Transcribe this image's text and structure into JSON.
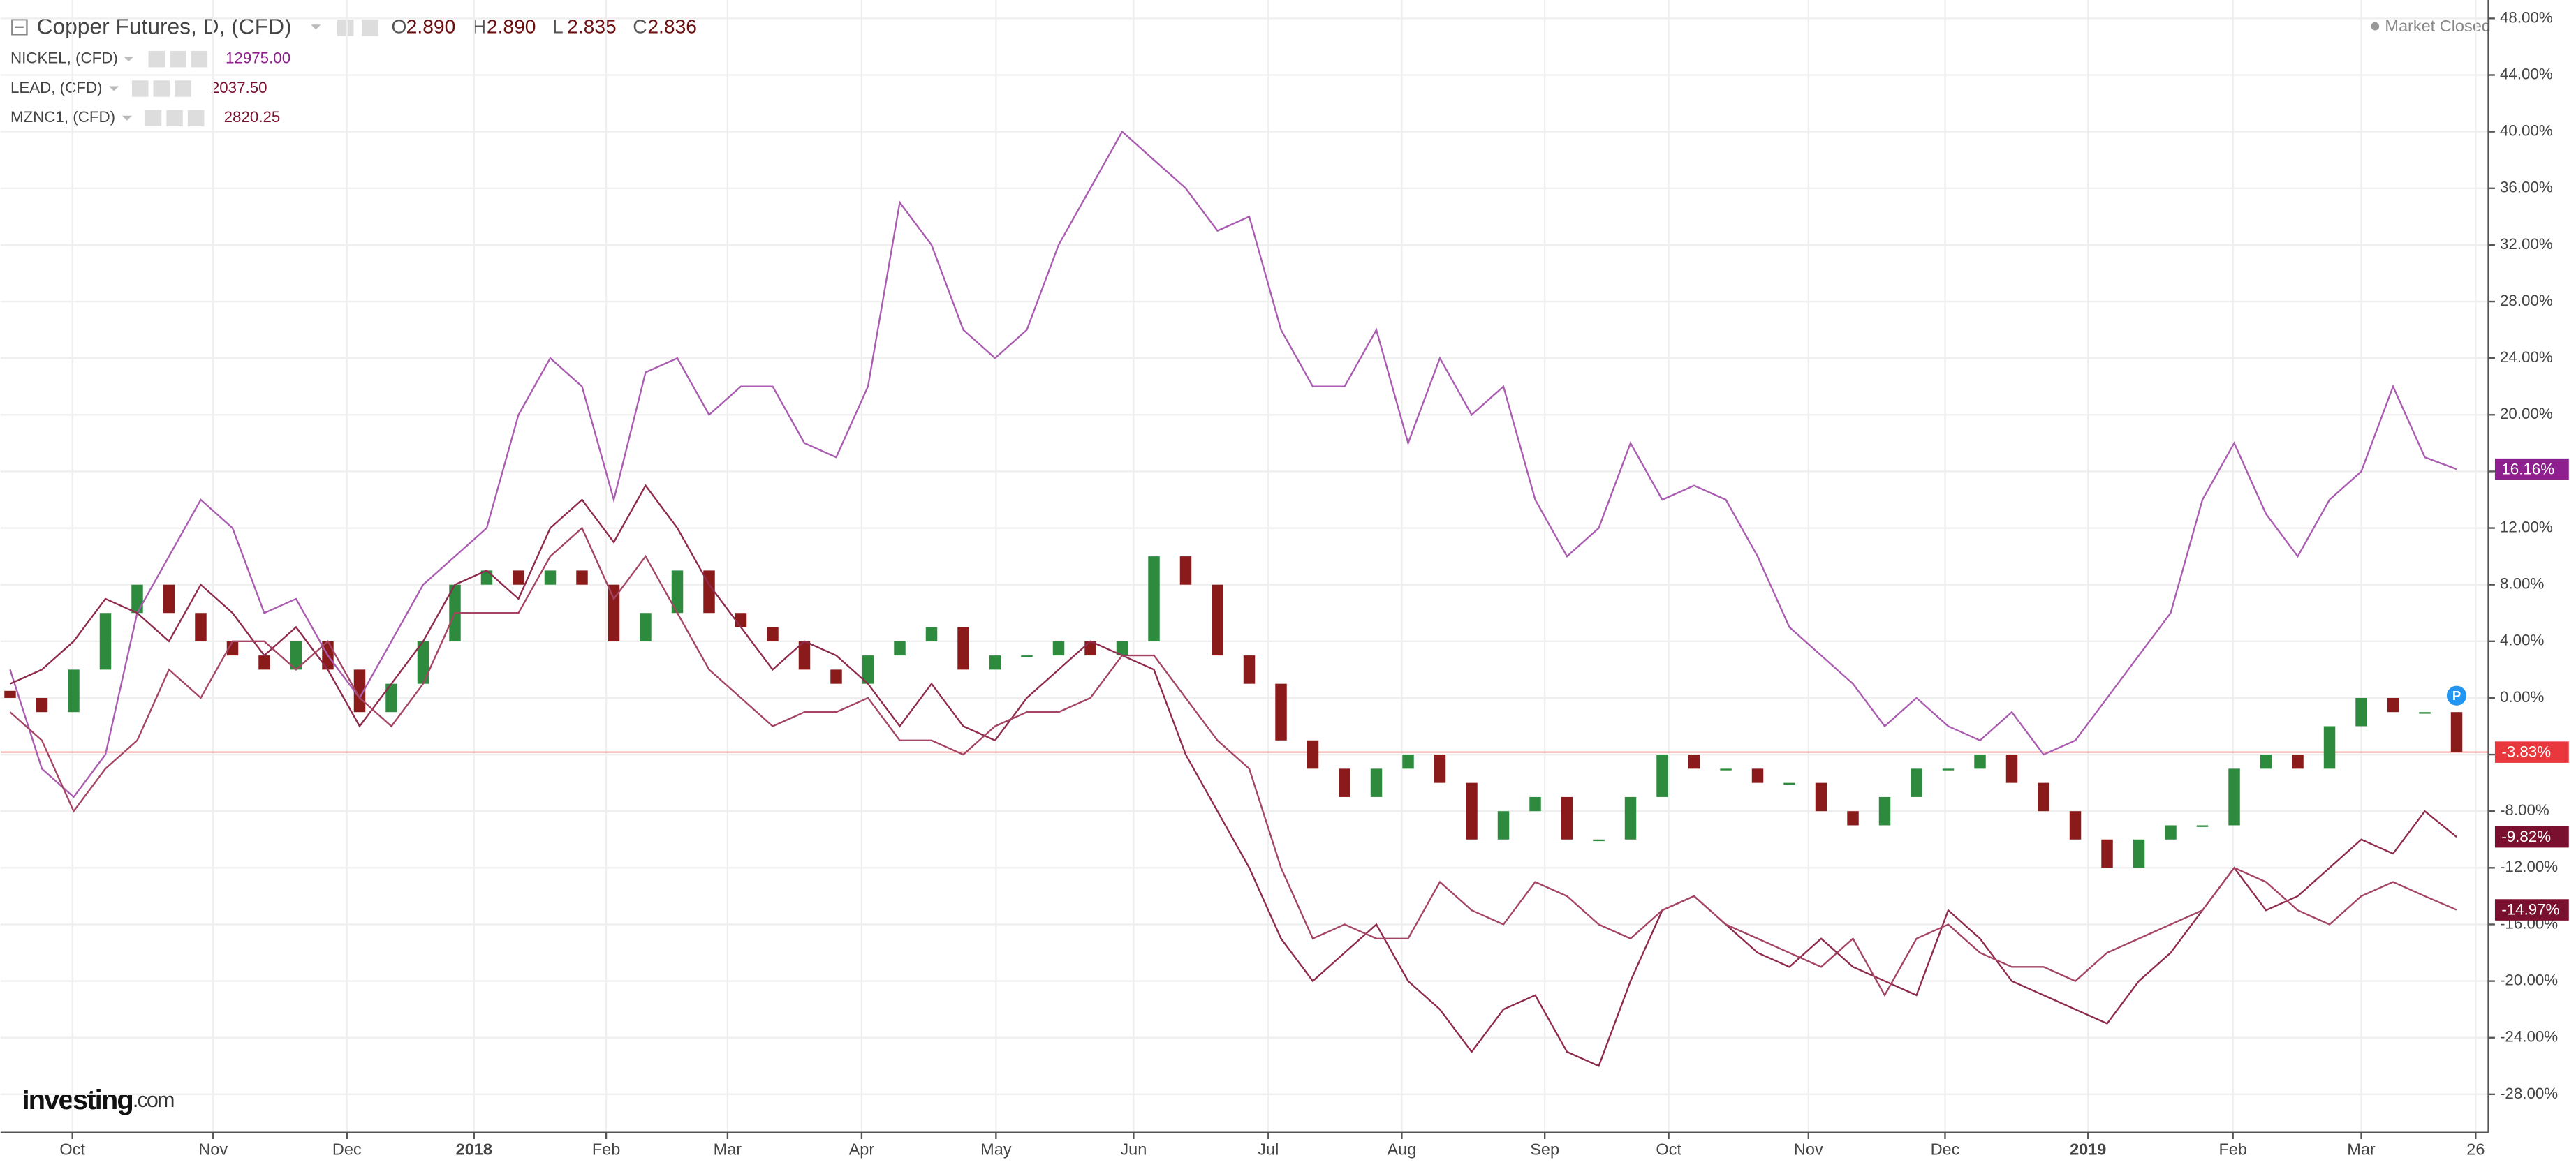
{
  "chart_data": {
    "type": "line",
    "market_status": "Market Closed",
    "brand": {
      "main": "Investing",
      "suffix": ".com"
    },
    "marker_label": "P",
    "x": [
      0,
      1,
      2,
      3,
      4,
      5,
      6,
      7,
      8,
      9,
      10,
      11,
      12,
      13,
      14,
      15,
      16,
      17,
      18,
      19,
      20,
      21,
      22,
      23,
      24,
      25,
      26,
      27,
      28,
      29,
      30,
      31,
      32,
      33,
      34,
      35,
      36,
      37,
      38,
      39,
      40,
      41,
      42,
      43,
      44,
      45,
      46,
      47,
      48,
      49,
      50,
      51,
      52,
      53,
      54,
      55,
      56,
      57,
      58,
      59,
      60,
      61,
      62,
      63,
      64,
      65,
      66,
      67,
      68,
      69,
      70,
      71,
      72,
      73,
      74,
      75,
      76,
      77
    ],
    "xlim": [
      -0.3,
      78
    ],
    "xticks": [
      {
        "value": 1.96,
        "label": "Oct"
      },
      {
        "value": 6.39,
        "label": "Nov"
      },
      {
        "value": 10.6,
        "label": "Dec"
      },
      {
        "value": 14.6,
        "label": "2018",
        "bold": true
      },
      {
        "value": 18.76,
        "label": "Feb"
      },
      {
        "value": 22.58,
        "label": "Mar"
      },
      {
        "value": 26.8,
        "label": "Apr"
      },
      {
        "value": 31.03,
        "label": "May"
      },
      {
        "value": 35.36,
        "label": "Jun"
      },
      {
        "value": 39.6,
        "label": "Jul"
      },
      {
        "value": 43.8,
        "label": "Aug"
      },
      {
        "value": 48.3,
        "label": "Sep"
      },
      {
        "value": 52.2,
        "label": "Oct"
      },
      {
        "value": 56.6,
        "label": "Nov"
      },
      {
        "value": 60.9,
        "label": "Dec"
      },
      {
        "value": 65.4,
        "label": "2019",
        "bold": true
      },
      {
        "value": 69.96,
        "label": "Feb"
      },
      {
        "value": 74.0,
        "label": "Mar"
      },
      {
        "value": 77.6,
        "label": "26"
      }
    ],
    "ylim": [
      -30.7,
      49.3
    ],
    "yticks": [
      {
        "value": -28,
        "label": "-28.00%"
      },
      {
        "value": -24,
        "label": "-24.00%"
      },
      {
        "value": -20,
        "label": "-20.00%"
      },
      {
        "value": -16,
        "label": "-16.00%"
      },
      {
        "value": -12,
        "label": "-12.00%"
      },
      {
        "value": -8,
        "label": "-8.00%"
      },
      {
        "value": -4,
        "label": "-4.00%"
      },
      {
        "value": 0,
        "label": "0.00%"
      },
      {
        "value": 4,
        "label": "4.00%"
      },
      {
        "value": 8,
        "label": "8.00%"
      },
      {
        "value": 12,
        "label": "12.00%"
      },
      {
        "value": 16,
        "label": "16.00%"
      },
      {
        "value": 20,
        "label": "20.00%"
      },
      {
        "value": 24,
        "label": "24.00%"
      },
      {
        "value": 28,
        "label": "28.00%"
      },
      {
        "value": 32,
        "label": "32.00%"
      },
      {
        "value": 36,
        "label": "36.00%"
      },
      {
        "value": 40,
        "label": "40.00%"
      },
      {
        "value": 44,
        "label": "44.00%"
      },
      {
        "value": 48,
        "label": "48.00%"
      }
    ],
    "grid": true,
    "series": [
      {
        "name": "Copper Futures, D, (CFD)",
        "type": "candlestick",
        "up_color": "#2e8b3e",
        "down_color": "#8b1a1a",
        "color": "#e8383d",
        "ohlc": [
          {
            "label": "O",
            "value": "2.890"
          },
          {
            "label": "H",
            "value": "2.890"
          },
          {
            "label": "L",
            "value": "2.835"
          },
          {
            "label": "C",
            "value": "2.836"
          }
        ],
        "open": [
          0.5,
          0,
          -1,
          2,
          6,
          8,
          6,
          4,
          3,
          2,
          4,
          2,
          -1,
          1,
          4,
          8,
          9,
          8,
          9,
          8,
          4,
          6,
          9,
          6,
          5,
          4,
          2,
          1,
          3,
          4,
          5,
          2,
          3,
          3,
          4,
          3,
          4,
          10,
          8,
          3,
          1,
          -3,
          -5,
          -7,
          -5,
          -4,
          -6,
          -10,
          -8,
          -7,
          -10,
          -10,
          -7,
          -4,
          -5,
          -5,
          -6,
          -6,
          -8,
          -9,
          -7,
          -5,
          -5,
          -4,
          -6,
          -8,
          -10,
          -12,
          -10,
          -9,
          -9,
          -5,
          -4,
          -5,
          -2,
          0,
          -1,
          -1
        ],
        "close": [
          0,
          -1,
          2,
          6,
          8,
          6,
          4,
          3,
          2,
          4,
          2,
          -1,
          1,
          4,
          8,
          9,
          8,
          9,
          8,
          4,
          6,
          9,
          6,
          5,
          4,
          2,
          1,
          3,
          4,
          5,
          2,
          3,
          3,
          4,
          3,
          4,
          10,
          8,
          3,
          1,
          -3,
          -5,
          -7,
          -5,
          -4,
          -6,
          -10,
          -8,
          -7,
          -10,
          -10,
          -7,
          -4,
          -5,
          -5,
          -6,
          -6,
          -8,
          -9,
          -7,
          -5,
          -5,
          -4,
          -6,
          -8,
          -10,
          -12,
          -10,
          -9,
          -9,
          -5,
          -4,
          -5,
          -2,
          0,
          -1,
          -1,
          -3.83
        ],
        "last_label": "-3.83%"
      },
      {
        "name": "NICKEL, (CFD)",
        "type": "line",
        "color": "#a95cb0",
        "price": "12975.00",
        "label_color": "#8e1f8e",
        "values": [
          2,
          -5,
          -7,
          -4,
          6,
          10,
          14,
          12,
          6,
          7,
          3,
          0,
          4,
          8,
          10,
          12,
          20,
          24,
          22,
          14,
          23,
          24,
          20,
          22,
          22,
          18,
          17,
          22,
          35,
          32,
          26,
          24,
          26,
          32,
          36,
          40,
          38,
          36,
          33,
          34,
          26,
          22,
          22,
          26,
          18,
          24,
          20,
          22,
          14,
          10,
          12,
          18,
          14,
          15,
          14,
          10,
          5,
          3,
          1,
          -2,
          0,
          -2,
          -3,
          -1,
          -4,
          -3,
          0,
          3,
          6,
          14,
          18,
          13,
          10,
          14,
          16,
          22,
          17,
          16.16
        ],
        "last_label": "16.16%"
      },
      {
        "name": "LEAD, (CFD)",
        "type": "line",
        "color": "#8e2a4e",
        "price": "2037.50",
        "label_color": "#7a1030",
        "values": [
          1,
          2,
          4,
          7,
          6,
          4,
          8,
          6,
          3,
          5,
          2,
          -2,
          1,
          4,
          8,
          9,
          7,
          12,
          14,
          11,
          15,
          12,
          8,
          5,
          2,
          4,
          3,
          1,
          -2,
          1,
          -2,
          -3,
          0,
          2,
          4,
          3,
          2,
          -4,
          -8,
          -12,
          -17,
          -20,
          -18,
          -16,
          -20,
          -22,
          -25,
          -22,
          -21,
          -25,
          -26,
          -20,
          -15,
          -14,
          -16,
          -18,
          -19,
          -17,
          -19,
          -20,
          -21,
          -15,
          -17,
          -20,
          -21,
          -22,
          -23,
          -20,
          -18,
          -15,
          -12,
          -15,
          -14,
          -12,
          -10,
          -11,
          -8,
          -9.82
        ],
        "last_label": "-9.82%"
      },
      {
        "name": "MZNC1, (CFD)",
        "type": "line",
        "color": "#a34563",
        "price": "2820.25",
        "label_color": "#7a1030",
        "values": [
          -1,
          -3,
          -8,
          -5,
          -3,
          2,
          0,
          4,
          4,
          2,
          4,
          0,
          -2,
          1,
          6,
          6,
          6,
          10,
          12,
          7,
          10,
          6,
          2,
          0,
          -2,
          -1,
          -1,
          0,
          -3,
          -3,
          -4,
          -2,
          -1,
          -1,
          0,
          3,
          3,
          0,
          -3,
          -5,
          -12,
          -17,
          -16,
          -17,
          -17,
          -13,
          -15,
          -16,
          -13,
          -14,
          -16,
          -17,
          -15,
          -14,
          -16,
          -17,
          -18,
          -19,
          -17,
          -21,
          -17,
          -16,
          -18,
          -19,
          -19,
          -20,
          -18,
          -17,
          -16,
          -15,
          -12,
          -13,
          -15,
          -16,
          -14,
          -13,
          -14,
          -14.97
        ],
        "last_label": "-14.97%"
      }
    ]
  }
}
